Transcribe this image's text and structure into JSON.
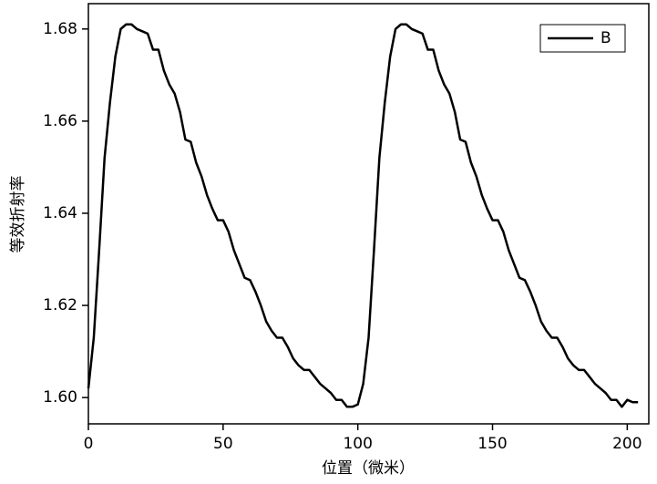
{
  "chart_data": {
    "type": "line",
    "xlabel": "位置（微米）",
    "ylabel": "等效折射率",
    "x": [
      0,
      2,
      4,
      6,
      8,
      10,
      12,
      14,
      16,
      18,
      20,
      22,
      24,
      26,
      28,
      30,
      32,
      34,
      36,
      38,
      40,
      42,
      44,
      46,
      48,
      50,
      52,
      54,
      56,
      58,
      60,
      62,
      64,
      66,
      68,
      70,
      72,
      74,
      76,
      78,
      80,
      82,
      84,
      86,
      88,
      90,
      92,
      94,
      96,
      98,
      100,
      102,
      104,
      106,
      108,
      110,
      112,
      114,
      116,
      118,
      120,
      122,
      124,
      126,
      128,
      130,
      132,
      134,
      136,
      138,
      140,
      142,
      144,
      146,
      148,
      150,
      152,
      154,
      156,
      158,
      160,
      162,
      164,
      166,
      168,
      170,
      172,
      174,
      176,
      178,
      180,
      182,
      184,
      186,
      188,
      190,
      192,
      194,
      196,
      198,
      200,
      202,
      204
    ],
    "series": [
      {
        "name": "B",
        "color": "#000000",
        "values": [
          1.602,
          1.613,
          1.632,
          1.652,
          1.664,
          1.674,
          1.68,
          1.681,
          1.681,
          1.68,
          1.6795,
          1.679,
          1.6755,
          1.6755,
          1.671,
          1.668,
          1.666,
          1.662,
          1.656,
          1.6555,
          1.651,
          1.648,
          1.644,
          1.641,
          1.6385,
          1.6385,
          1.636,
          1.632,
          1.629,
          1.626,
          1.6255,
          1.623,
          1.62,
          1.6165,
          1.6145,
          1.613,
          1.613,
          1.611,
          1.6085,
          1.607,
          1.606,
          1.606,
          1.6045,
          1.603,
          1.602,
          1.601,
          1.5995,
          1.5995,
          1.598,
          1.598,
          1.5985,
          1.603,
          1.613,
          1.632,
          1.652,
          1.664,
          1.674,
          1.68,
          1.681,
          1.681,
          1.68,
          1.6795,
          1.679,
          1.6755,
          1.6755,
          1.671,
          1.668,
          1.666,
          1.662,
          1.656,
          1.6555,
          1.651,
          1.648,
          1.644,
          1.641,
          1.6385,
          1.6385,
          1.636,
          1.632,
          1.629,
          1.626,
          1.6255,
          1.623,
          1.62,
          1.6165,
          1.6145,
          1.613,
          1.613,
          1.611,
          1.6085,
          1.607,
          1.606,
          1.606,
          1.6045,
          1.603,
          1.602,
          1.601,
          1.5995,
          1.5995,
          1.598,
          1.5995,
          1.599,
          1.599
        ]
      }
    ],
    "xlim": [
      0,
      208
    ],
    "ylim": [
      1.5943,
      1.6855
    ],
    "xticks": [
      0,
      50,
      100,
      150,
      200
    ],
    "yticks": [
      {
        "value": 1.6,
        "label": "1.60"
      },
      1.62,
      1.64,
      1.66,
      1.68
    ],
    "legend": "upper right"
  }
}
